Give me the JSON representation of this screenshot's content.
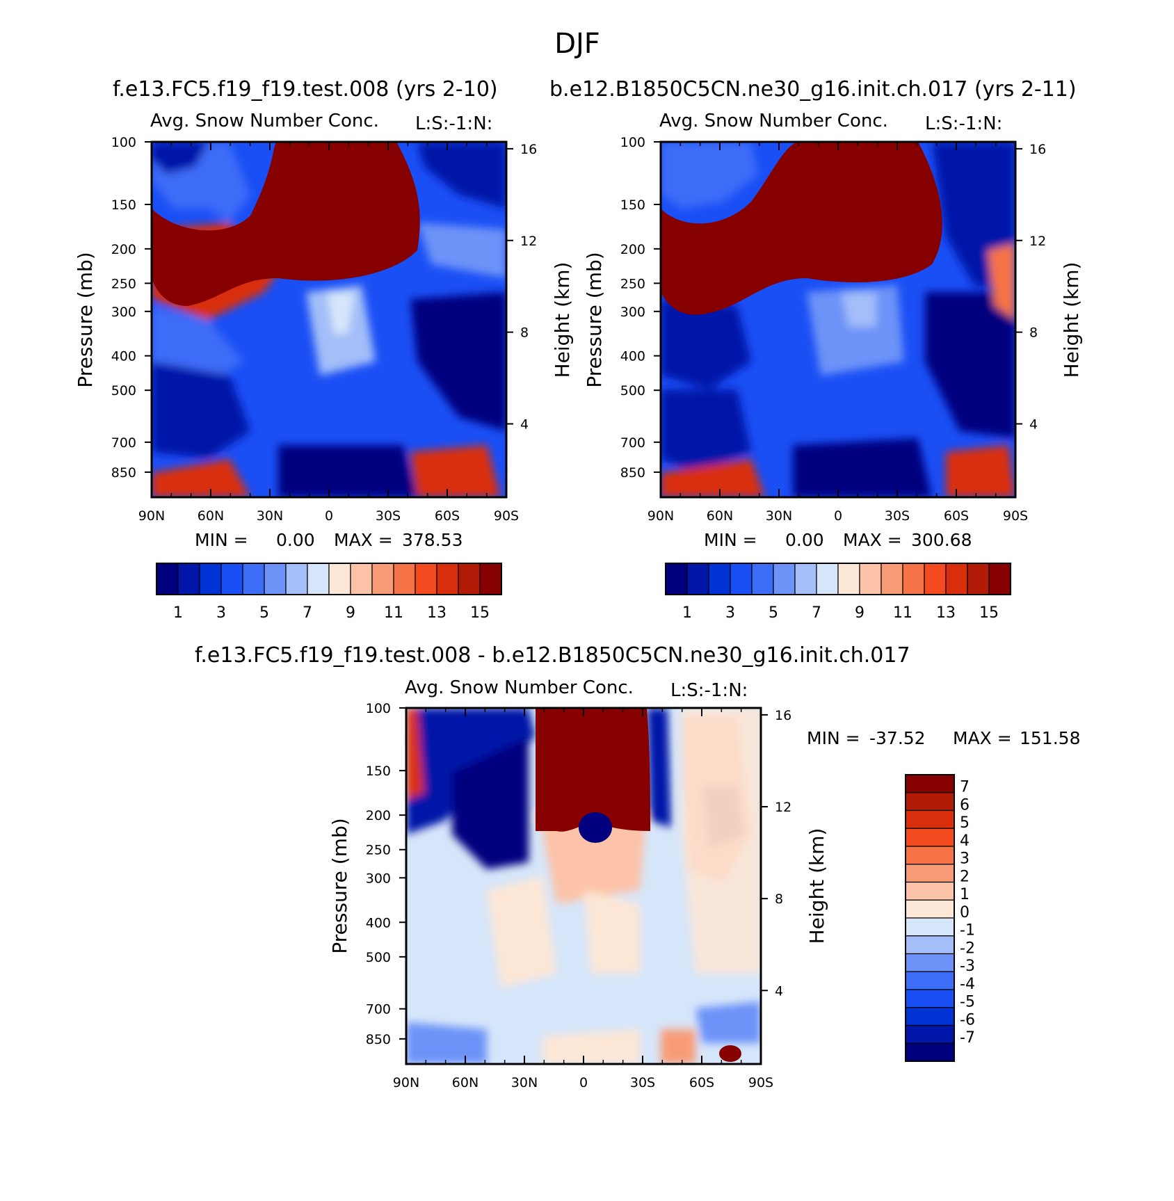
{
  "figure_title": "DJF",
  "chart_data": [
    {
      "type": "heatmap",
      "title": "f.e13.FC5.f19_f19.test.008 (yrs 2-10)",
      "subtitle": "Avg. Snow Number Conc.",
      "units_label": "L:S:-1:N:",
      "xlabel": "",
      "ylabel": "Pressure (mb)",
      "ylabel_right": "Height (km)",
      "x_ticks": [
        "90N",
        "60N",
        "30N",
        "0",
        "30S",
        "60S",
        "90S"
      ],
      "y_ticks": [
        "100",
        "150",
        "200",
        "250",
        "300",
        "400",
        "500",
        "700",
        "850"
      ],
      "y_ticks_right": [
        "16",
        "12",
        "8",
        "4"
      ],
      "stats": {
        "min_label": "MIN =",
        "min": "0.00",
        "max_label": "MAX =",
        "max": "378.53"
      },
      "colorbar": {
        "tick_labels": [
          "1",
          "3",
          "5",
          "7",
          "9",
          "11",
          "13",
          "15"
        ],
        "colors": [
          "#00007f",
          "#0016a8",
          "#0033d6",
          "#1a4ff5",
          "#3d6cf7",
          "#6d93f8",
          "#a3bef8",
          "#d6e6fa",
          "#fde7d6",
          "#fcc3a8",
          "#f89c77",
          "#f57347",
          "#f44a1f",
          "#d92e0c",
          "#b01a06",
          "#870000"
        ]
      }
    },
    {
      "type": "heatmap",
      "title": "b.e12.B1850C5CN.ne30_g16.init.ch.017 (yrs 2-11)",
      "subtitle": "Avg. Snow Number Conc.",
      "units_label": "L:S:-1:N:",
      "xlabel": "",
      "ylabel": "Pressure (mb)",
      "ylabel_right": "Height (km)",
      "x_ticks": [
        "90N",
        "60N",
        "30N",
        "0",
        "30S",
        "60S",
        "90S"
      ],
      "y_ticks": [
        "100",
        "150",
        "200",
        "250",
        "300",
        "400",
        "500",
        "700",
        "850"
      ],
      "y_ticks_right": [
        "16",
        "12",
        "8",
        "4"
      ],
      "stats": {
        "min_label": "MIN =",
        "min": "0.00",
        "max_label": "MAX =",
        "max": "300.68"
      },
      "colorbar": {
        "tick_labels": [
          "1",
          "3",
          "5",
          "7",
          "9",
          "11",
          "13",
          "15"
        ],
        "colors": [
          "#00007f",
          "#0016a8",
          "#0033d6",
          "#1a4ff5",
          "#3d6cf7",
          "#6d93f8",
          "#a3bef8",
          "#d6e6fa",
          "#fde7d6",
          "#fcc3a8",
          "#f89c77",
          "#f57347",
          "#f44a1f",
          "#d92e0c",
          "#b01a06",
          "#870000"
        ]
      }
    },
    {
      "type": "heatmap",
      "title": "f.e13.FC5.f19_f19.test.008 - b.e12.B1850C5CN.ne30_g16.init.ch.017",
      "subtitle": "Avg. Snow Number Conc.",
      "units_label": "L:S:-1:N:",
      "xlabel": "",
      "ylabel": "Pressure (mb)",
      "ylabel_right": "Height (km)",
      "x_ticks": [
        "90N",
        "60N",
        "30N",
        "0",
        "30S",
        "60S",
        "90S"
      ],
      "y_ticks": [
        "100",
        "150",
        "200",
        "250",
        "300",
        "400",
        "500",
        "700",
        "850"
      ],
      "y_ticks_right": [
        "16",
        "12",
        "8",
        "4"
      ],
      "stats": {
        "min_label": "MIN =",
        "min": "-37.52",
        "max_label": "MAX =",
        "max": "151.58"
      },
      "colorbar": {
        "tick_labels": [
          "7",
          "6",
          "5",
          "4",
          "3",
          "2",
          "1",
          "0",
          "-1",
          "-2",
          "-3",
          "-4",
          "-5",
          "-6",
          "-7"
        ],
        "colors": [
          "#870000",
          "#b01a06",
          "#d92e0c",
          "#f44a1f",
          "#f57347",
          "#f89c77",
          "#fcc3a8",
          "#fde7d6",
          "#d6e6fa",
          "#a3bef8",
          "#6d93f8",
          "#3d6cf7",
          "#1a4ff5",
          "#0033d6",
          "#0016a8",
          "#00007f"
        ]
      }
    }
  ]
}
